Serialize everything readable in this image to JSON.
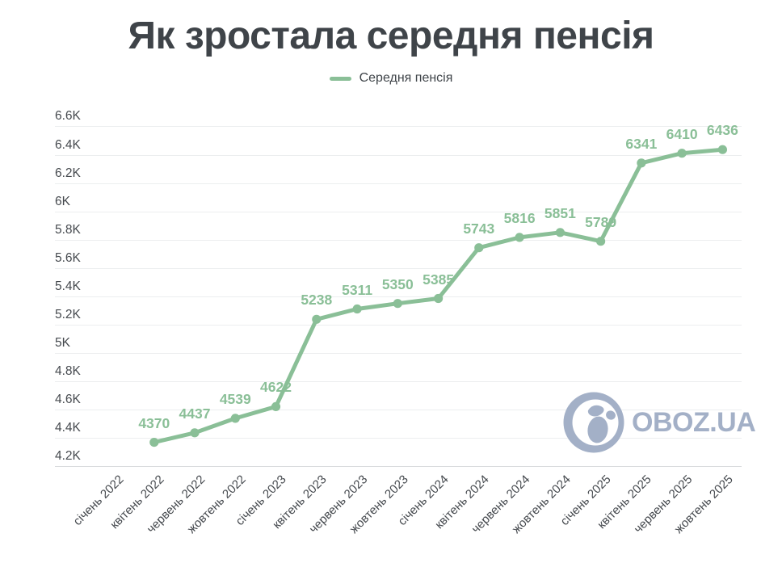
{
  "title": "Як зростала середня пенсія",
  "legend": {
    "label": "Середня пенсія"
  },
  "watermark": {
    "text": "OBOZ.UA"
  },
  "colors": {
    "series": "#8abf97",
    "title_text": "#3f4449",
    "axis_text": "#45494e",
    "grid_line": "#eceeef",
    "axis_line": "#d9dbdd",
    "watermark": "#a3b0c7",
    "background": "#ffffff"
  },
  "chart_data": {
    "type": "line",
    "title": "Як зростала середня пенсія",
    "legend": [
      "Середня пенсія"
    ],
    "legend_position": "top-center",
    "grid": "horizontal",
    "point_labels": true,
    "categories": [
      "січень 2022",
      "квітень 2022",
      "червень 2022",
      "жовтень 2022",
      "січень 2023",
      "квітень 2023",
      "червень 2023",
      "жовтень 2023",
      "січень 2024",
      "квітень 2024",
      "червень 2024",
      "жовтень 2024",
      "січень 2025",
      "квітень 2025",
      "червень 2025",
      "жовтень 2025"
    ],
    "series": [
      {
        "name": "Середня пенсія",
        "values": [
          null,
          4370,
          4437,
          4539,
          4622,
          5238,
          5311,
          5350,
          5385,
          5743,
          5816,
          5851,
          5789,
          6341,
          6410,
          6436
        ]
      }
    ],
    "ylim": [
      4200,
      6600
    ],
    "ytick_step": 200,
    "ytick_labels": [
      "4.2K",
      "4.4K",
      "4.6K",
      "4.8K",
      "5K",
      "5.2K",
      "5.4K",
      "5.6K",
      "5.8K",
      "6K",
      "6.2K",
      "6.4K",
      "6.6K"
    ]
  }
}
